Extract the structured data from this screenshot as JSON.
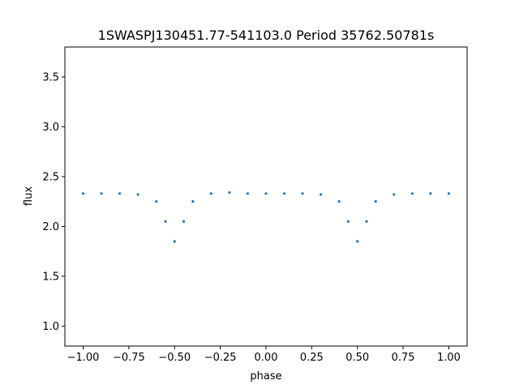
{
  "chart_data": {
    "type": "scatter",
    "title": "1SWASPJ130451.77-541103.0 Period 35762.50781s",
    "xlabel": "phase",
    "ylabel": "flux",
    "xlim": [
      -1.1,
      1.1
    ],
    "ylim": [
      0.8,
      3.8
    ],
    "x_ticks": [
      -1.0,
      -0.75,
      -0.5,
      -0.25,
      0.0,
      0.25,
      0.5,
      0.75,
      1.0
    ],
    "x_tick_labels": [
      "−1.00",
      "−0.75",
      "−0.50",
      "−0.25",
      "0.00",
      "0.25",
      "0.50",
      "0.75",
      "1.00"
    ],
    "y_ticks": [
      1.0,
      1.5,
      2.0,
      2.5,
      3.0,
      3.5
    ],
    "y_tick_labels": [
      "1.0",
      "1.5",
      "2.0",
      "2.5",
      "3.0",
      "3.5"
    ],
    "grid": false,
    "marker_color": "#1f77b4",
    "series": [
      {
        "x": [
          -1.0,
          -0.9,
          -0.8,
          -0.7,
          -0.6,
          -0.55,
          -0.5,
          -0.45,
          -0.4,
          -0.3,
          -0.2,
          -0.1,
          0.0,
          0.1,
          0.2,
          0.3,
          0.4,
          0.45,
          0.5,
          0.55,
          0.6,
          0.7,
          0.8,
          0.9,
          1.0
        ],
        "values": [
          2.33,
          2.33,
          2.33,
          2.32,
          2.25,
          2.05,
          1.85,
          2.05,
          2.25,
          2.33,
          2.34,
          2.33,
          2.33,
          2.33,
          2.33,
          2.32,
          2.25,
          2.05,
          1.85,
          2.05,
          2.25,
          2.32,
          2.33,
          2.33,
          2.33
        ]
      }
    ]
  }
}
